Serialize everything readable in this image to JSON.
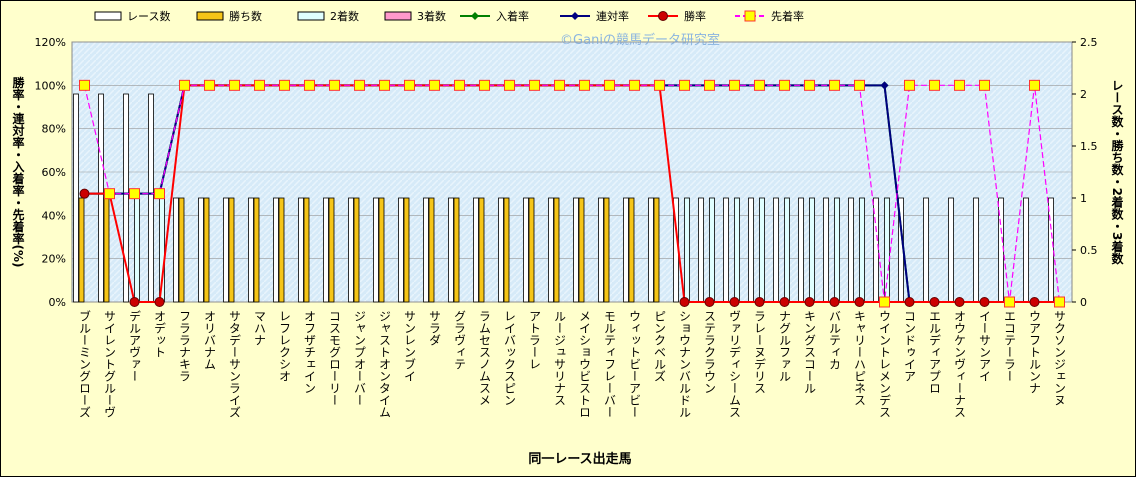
{
  "chart_data": {
    "type": "combo",
    "title": "©Ganiの競馬データ研究室",
    "x_label": "同一レース出走馬",
    "y_label": "勝率・連対率・入着率・先着率(%)",
    "y2_label": "レース数・勝ち数・2着数・3着数",
    "categories": [
      "ブルーミングローズ",
      "サイレントグルーヴ",
      "デルアヴァー",
      "オデット",
      "フララナキラ",
      "オリバナム",
      "サタデーサンライズ",
      "マハナ",
      "レフレクシオ",
      "オフザチェイン",
      "コスモグローリー",
      "ジャンプオーバー",
      "ジャストオンタイム",
      "サンレンブイ",
      "サラダ",
      "グラヴィテ",
      "ラムセスノムスメ",
      "レイバックスピン",
      "アトラーレ",
      "ルージュサリナス",
      "メイショウビストロ",
      "モルティフレーバー",
      "ウィットビーアビー",
      "ピンクベルズ",
      "ショウナンバルドル",
      "ステラクラウン",
      "ヴァリディシームス",
      "ラレーヌデリス",
      "ナグルファル",
      "キングスコール",
      "バルティカ",
      "キャリーハピネス",
      "ウイントレメンデス",
      "コンドゥイア",
      "エルディアプロ",
      "オウケンヴィーナス",
      "イーサンアイ",
      "エコテーラー",
      "ウアフトルンナ",
      "サクソンジェンヌ"
    ],
    "ylim": [
      0,
      120
    ],
    "yticks": [
      {
        "value": 0,
        "label": "0%"
      },
      {
        "value": 20,
        "label": "20%"
      },
      {
        "value": 40,
        "label": "40%"
      },
      {
        "value": 60,
        "label": "60%"
      },
      {
        "value": 80,
        "label": "80%"
      },
      {
        "value": 100,
        "label": "100%"
      },
      {
        "value": 120,
        "label": "120%"
      }
    ],
    "y2lim": [
      0,
      2.5
    ],
    "y2ticks": [
      0,
      0.5,
      1,
      1.5,
      2,
      2.5
    ],
    "grid": true,
    "series": [
      {
        "name": "レース数",
        "type": "bar",
        "axis": "y2",
        "color": "#ffffff",
        "values": [
          2,
          2,
          2,
          2,
          1,
          1,
          1,
          1,
          1,
          1,
          1,
          1,
          1,
          1,
          1,
          1,
          1,
          1,
          1,
          1,
          1,
          1,
          1,
          1,
          1,
          1,
          1,
          1,
          1,
          1,
          1,
          1,
          1,
          1,
          1,
          1,
          1,
          1,
          1,
          1
        ]
      },
      {
        "name": "勝ち数",
        "type": "bar",
        "axis": "y2",
        "color": "#f5c518",
        "values": [
          1,
          1,
          0,
          0,
          1,
          1,
          1,
          1,
          1,
          1,
          1,
          1,
          1,
          1,
          1,
          1,
          1,
          1,
          1,
          1,
          1,
          1,
          1,
          1,
          0,
          0,
          0,
          0,
          0,
          0,
          0,
          0,
          0,
          0,
          0,
          0,
          0,
          0,
          0,
          0
        ]
      },
      {
        "name": "2着数",
        "type": "bar",
        "axis": "y2",
        "color": "#e0ffff",
        "values": [
          0,
          0,
          1,
          1,
          0,
          0,
          0,
          0,
          0,
          0,
          0,
          0,
          0,
          0,
          0,
          0,
          0,
          0,
          0,
          0,
          0,
          0,
          0,
          0,
          1,
          1,
          1,
          1,
          1,
          1,
          1,
          1,
          1,
          0,
          0,
          0,
          0,
          0,
          0,
          0
        ]
      },
      {
        "name": "3着数",
        "type": "bar",
        "axis": "y2",
        "color": "#ff99cc",
        "values": [
          0,
          0,
          0,
          0,
          0,
          0,
          0,
          0,
          0,
          0,
          0,
          0,
          0,
          0,
          0,
          0,
          0,
          0,
          0,
          0,
          0,
          0,
          0,
          0,
          0,
          0,
          0,
          0,
          0,
          0,
          0,
          0,
          0,
          0,
          0,
          0,
          0,
          0,
          0,
          0
        ]
      },
      {
        "name": "入着率",
        "type": "line",
        "color": "#008000",
        "marker": "diamond",
        "values": [
          50,
          50,
          50,
          50,
          100,
          100,
          100,
          100,
          100,
          100,
          100,
          100,
          100,
          100,
          100,
          100,
          100,
          100,
          100,
          100,
          100,
          100,
          100,
          100,
          100,
          100,
          100,
          100,
          100,
          100,
          100,
          100,
          100,
          0,
          0,
          0,
          0,
          0,
          0,
          0
        ]
      },
      {
        "name": "連対率",
        "type": "line",
        "color": "#000080",
        "marker": "diamond",
        "values": [
          50,
          50,
          50,
          50,
          100,
          100,
          100,
          100,
          100,
          100,
          100,
          100,
          100,
          100,
          100,
          100,
          100,
          100,
          100,
          100,
          100,
          100,
          100,
          100,
          100,
          100,
          100,
          100,
          100,
          100,
          100,
          100,
          100,
          0,
          0,
          0,
          0,
          0,
          0,
          0
        ]
      },
      {
        "name": "勝率",
        "type": "line",
        "color": "#ff0000",
        "marker": "circle",
        "values": [
          50,
          50,
          0,
          0,
          100,
          100,
          100,
          100,
          100,
          100,
          100,
          100,
          100,
          100,
          100,
          100,
          100,
          100,
          100,
          100,
          100,
          100,
          100,
          100,
          0,
          0,
          0,
          0,
          0,
          0,
          0,
          0,
          0,
          0,
          0,
          0,
          0,
          0,
          0,
          0
        ]
      },
      {
        "name": "先着率",
        "type": "line",
        "color": "#ff00ff",
        "marker": "square",
        "dashed": true,
        "values": [
          100,
          50,
          50,
          50,
          100,
          100,
          100,
          100,
          100,
          100,
          100,
          100,
          100,
          100,
          100,
          100,
          100,
          100,
          100,
          100,
          100,
          100,
          100,
          100,
          100,
          100,
          100,
          100,
          100,
          100,
          100,
          100,
          0,
          100,
          100,
          100,
          100,
          0,
          100,
          0
        ]
      }
    ]
  }
}
